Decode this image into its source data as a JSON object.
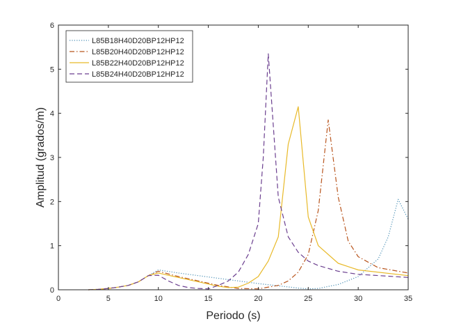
{
  "chart_data": {
    "type": "line",
    "title": "",
    "xlabel": "Periodo (s)",
    "ylabel": "Amplitud (grados/m)",
    "xlim": [
      0,
      35
    ],
    "ylim": [
      0,
      6
    ],
    "xticks": [
      0,
      5,
      10,
      15,
      20,
      25,
      30,
      35
    ],
    "yticks": [
      0,
      1,
      2,
      3,
      4,
      5,
      6
    ],
    "grid": false,
    "legend_position": "top-left",
    "series": [
      {
        "name": "L85B18H40D20BP12HP12",
        "color": "#4a8fb5",
        "dash": "dotted",
        "x": [
          3,
          4,
          5,
          6,
          7,
          8,
          9,
          10,
          12,
          14,
          16,
          18,
          20,
          22,
          24,
          25,
          26,
          28,
          30,
          32,
          33,
          34,
          35
        ],
        "y": [
          0,
          0.01,
          0.03,
          0.06,
          0.1,
          0.18,
          0.32,
          0.45,
          0.38,
          0.32,
          0.26,
          0.2,
          0.14,
          0.09,
          0.04,
          0.02,
          0.03,
          0.12,
          0.3,
          0.7,
          1.2,
          2.05,
          1.6
        ]
      },
      {
        "name": "L85B20H40D20BP12HP12",
        "color": "#b8541c",
        "dash": "dashdot",
        "x": [
          3,
          4,
          5,
          6,
          7,
          8,
          9,
          10,
          12,
          14,
          16,
          18,
          20,
          22,
          23,
          24,
          25,
          26,
          27,
          28,
          29,
          30,
          32,
          35
        ],
        "y": [
          0,
          0.01,
          0.03,
          0.06,
          0.1,
          0.18,
          0.32,
          0.42,
          0.3,
          0.2,
          0.1,
          0.03,
          0.02,
          0.1,
          0.2,
          0.4,
          0.8,
          1.8,
          3.85,
          2.1,
          1.1,
          0.75,
          0.5,
          0.38
        ]
      },
      {
        "name": "L85B22H40D20BP12HP12",
        "color": "#e8b928",
        "dash": "solid",
        "x": [
          3,
          4,
          5,
          6,
          7,
          8,
          9,
          10,
          12,
          14,
          16,
          17,
          18,
          19,
          20,
          21,
          22,
          23,
          24,
          25,
          26,
          28,
          30,
          35
        ],
        "y": [
          0,
          0.01,
          0.03,
          0.06,
          0.1,
          0.18,
          0.32,
          0.38,
          0.28,
          0.18,
          0.08,
          0.05,
          0.06,
          0.15,
          0.3,
          0.65,
          1.2,
          3.3,
          4.15,
          1.65,
          1.0,
          0.6,
          0.45,
          0.32
        ]
      },
      {
        "name": "L85B24H40D20BP12HP12",
        "color": "#6b3f8f",
        "dash": "dashed",
        "x": [
          3,
          4,
          5,
          6,
          7,
          8,
          9,
          10,
          11,
          12,
          13,
          14,
          15,
          16,
          17,
          18,
          19,
          20,
          20.5,
          21,
          22,
          23,
          24,
          25,
          26,
          28,
          30,
          35
        ],
        "y": [
          0,
          0.01,
          0.03,
          0.06,
          0.1,
          0.18,
          0.32,
          0.33,
          0.2,
          0.1,
          0.05,
          0.03,
          0.02,
          0.1,
          0.2,
          0.4,
          0.8,
          1.5,
          3.0,
          5.35,
          2.1,
          1.2,
          0.85,
          0.65,
          0.55,
          0.42,
          0.35,
          0.28
        ]
      }
    ]
  }
}
